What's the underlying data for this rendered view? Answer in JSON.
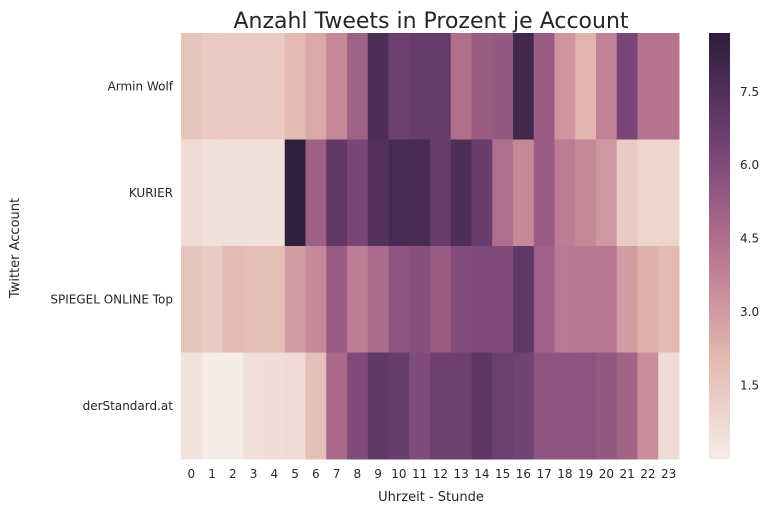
{
  "chart_data": {
    "type": "heatmap",
    "title": "Anzahl Tweets in Prozent je Account",
    "xlabel": "Uhrzeit - Stunde",
    "ylabel": "Twitter Account",
    "x": [
      "0",
      "1",
      "2",
      "3",
      "4",
      "5",
      "6",
      "7",
      "8",
      "9",
      "10",
      "11",
      "12",
      "13",
      "14",
      "15",
      "16",
      "17",
      "18",
      "19",
      "20",
      "21",
      "22",
      "23"
    ],
    "y": [
      "Armin Wolf",
      "KURIER",
      "SPIEGEL ONLINE Top",
      "derStandard.at"
    ],
    "values": [
      [
        1.6,
        1.4,
        1.3,
        1.3,
        1.3,
        2.0,
        2.6,
        3.6,
        5.0,
        7.6,
        6.6,
        6.8,
        6.8,
        4.5,
        5.2,
        5.4,
        8.0,
        5.2,
        3.2,
        2.2,
        3.8,
        6.2,
        4.3,
        4.3
      ],
      [
        0.7,
        0.5,
        0.5,
        0.5,
        0.5,
        8.6,
        5.1,
        7.0,
        6.2,
        7.4,
        7.8,
        7.8,
        6.7,
        7.6,
        6.7,
        4.5,
        3.6,
        5.2,
        4.0,
        3.6,
        3.1,
        1.3,
        0.9,
        0.9
      ],
      [
        1.6,
        1.4,
        2.0,
        1.8,
        1.8,
        2.9,
        3.6,
        5.2,
        4.0,
        4.6,
        5.6,
        5.8,
        5.2,
        5.9,
        6.0,
        6.0,
        7.0,
        5.0,
        4.1,
        4.2,
        4.2,
        3.0,
        2.3,
        2.0
      ],
      [
        0.4,
        0.0,
        0.0,
        0.5,
        0.6,
        0.7,
        1.8,
        4.7,
        6.0,
        7.0,
        6.8,
        6.0,
        6.5,
        6.5,
        7.1,
        6.6,
        6.4,
        5.6,
        5.6,
        5.6,
        5.4,
        4.9,
        3.4,
        0.7
      ]
    ],
    "colorbar": {
      "range": [
        0,
        8.7
      ],
      "ticks": [
        "1.5",
        "3.0",
        "4.5",
        "6.0",
        "7.5"
      ]
    },
    "colors": {
      "low": "#f5ece6",
      "high": "#2d1d3a"
    }
  }
}
